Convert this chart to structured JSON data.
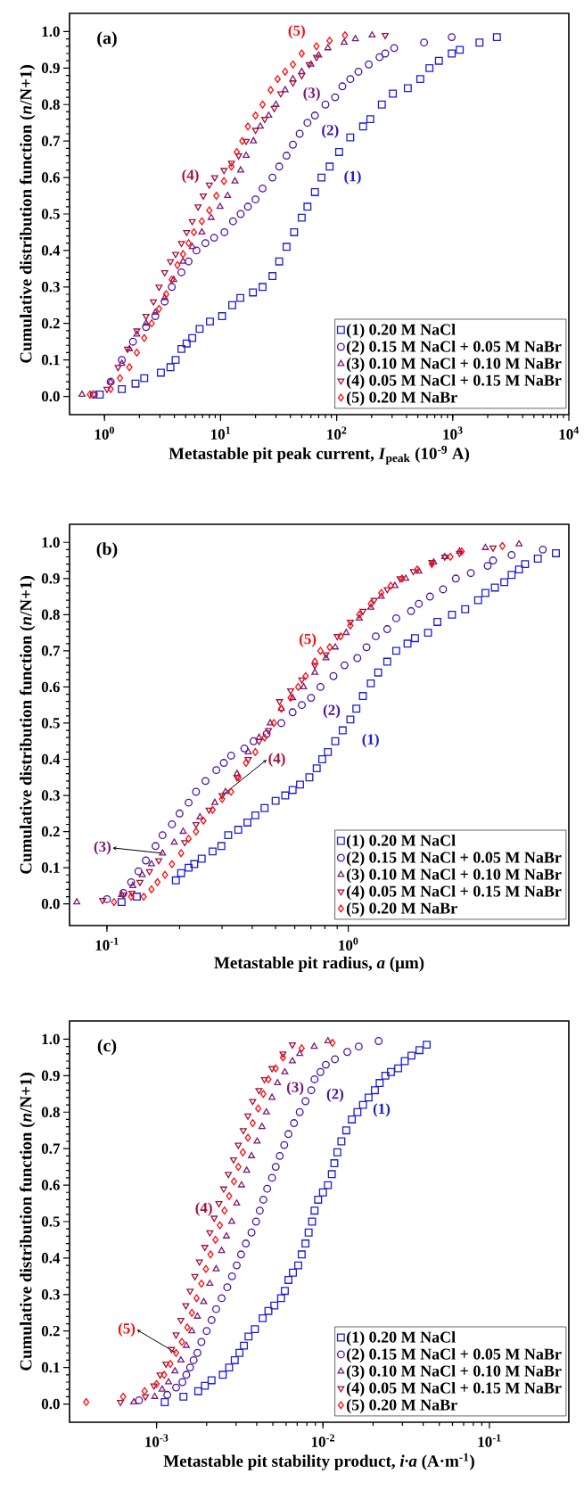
{
  "chart_data": [
    {
      "type": "scatter",
      "xlabel": "Metastable pit peak current, *I*$_{peak}$ (10$^{-9}$ A)",
      "ylabel": "Cumulative distribution function (*n*/N+1)",
      "log": "x",
      "legend": "bottom right",
      "xlim": [
        0.5,
        10000
      ],
      "ylim": [
        -0.05,
        1.05
      ],
      "xticks": [
        {
          "value": 1,
          "label": "10$^{0}$"
        },
        {
          "value": 10,
          "label": "10$^{1}$"
        },
        {
          "value": 100,
          "label": "10$^{2}$"
        },
        {
          "value": 1000,
          "label": "10$^{3}$"
        },
        {
          "value": 10000,
          "label": "10$^{4}$"
        }
      ],
      "yticks": [
        {
          "value": 0,
          "label": "0.0"
        },
        {
          "value": 0.1,
          "label": "0.1"
        },
        {
          "value": 0.2,
          "label": "0.2"
        },
        {
          "value": 0.3,
          "label": "0.3"
        },
        {
          "value": 0.4,
          "label": "0.4"
        },
        {
          "value": 0.5,
          "label": "0.5"
        },
        {
          "value": 0.6,
          "label": "0.6"
        },
        {
          "value": 0.7,
          "label": "0.7"
        },
        {
          "value": 0.8,
          "label": "0.8"
        },
        {
          "value": 0.9,
          "label": "0.9"
        },
        {
          "value": 1,
          "label": "1.0"
        }
      ],
      "annotations": [
        "(a)",
        "(1)",
        "(2)",
        "(3)",
        "(4)",
        "(5)"
      ],
      "series": [
        {
          "name": "(1) 0.20 M NaCl",
          "color": "#1c1cd8",
          "marker": "square",
          "x": [
            0.91,
            1.41,
            1.85,
            2.2,
            3.06,
            3.7,
            4.1,
            4.6,
            5.1,
            5.7,
            6.6,
            8.1,
            10.3,
            12.6,
            14.8,
            19,
            23,
            28,
            32,
            37,
            43,
            50,
            56,
            65,
            74,
            87,
            105,
            131,
            169,
            195,
            245,
            305,
            410,
            525,
            630,
            760,
            980,
            1150,
            1700,
            2400
          ],
          "values": [
            0.005,
            0.02,
            0.035,
            0.05,
            0.065,
            0.08,
            0.1,
            0.13,
            0.145,
            0.16,
            0.185,
            0.205,
            0.22,
            0.25,
            0.27,
            0.285,
            0.3,
            0.33,
            0.37,
            0.41,
            0.45,
            0.49,
            0.52,
            0.56,
            0.6,
            0.63,
            0.67,
            0.71,
            0.74,
            0.76,
            0.8,
            0.83,
            0.845,
            0.87,
            0.9,
            0.92,
            0.94,
            0.95,
            0.97,
            0.985
          ]
        },
        {
          "name": "(2) 0.15 M NaCl + 0.05 M NaBr",
          "color": "#4a12a0",
          "marker": "circle",
          "x": [
            0.81,
            1.13,
            1.41,
            1.76,
            2.28,
            2.74,
            3.3,
            3.8,
            4.6,
            5.3,
            6.2,
            7.4,
            8.8,
            10.8,
            12.8,
            14.9,
            17.2,
            20,
            23,
            28,
            32,
            37,
            42,
            48,
            56,
            65,
            80,
            97,
            112,
            131,
            154,
            189,
            234,
            262,
            313,
            566,
            980
          ],
          "values": [
            0.005,
            0.04,
            0.1,
            0.15,
            0.19,
            0.22,
            0.26,
            0.3,
            0.34,
            0.37,
            0.4,
            0.42,
            0.435,
            0.45,
            0.48,
            0.5,
            0.52,
            0.54,
            0.57,
            0.6,
            0.63,
            0.66,
            0.69,
            0.72,
            0.75,
            0.77,
            0.8,
            0.82,
            0.85,
            0.87,
            0.89,
            0.91,
            0.93,
            0.94,
            0.955,
            0.97,
            0.985
          ]
        },
        {
          "name": "(3) 0.10 M NaCl + 0.10 M NaBr",
          "color": "#7a1a78",
          "marker": "triangle",
          "x": [
            0.64,
            1.13,
            1.41,
            1.64,
            1.9,
            2.28,
            2.74,
            3.3,
            3.95,
            4.75,
            5.7,
            6.9,
            8.3,
            9.9,
            11.5,
            13.3,
            14.9,
            16.6,
            19.2,
            22,
            26,
            30,
            36,
            42,
            50,
            60,
            70,
            84,
            116,
            145,
            202
          ],
          "values": [
            0.005,
            0.04,
            0.09,
            0.13,
            0.17,
            0.2,
            0.23,
            0.27,
            0.32,
            0.37,
            0.41,
            0.45,
            0.49,
            0.52,
            0.55,
            0.59,
            0.62,
            0.66,
            0.7,
            0.74,
            0.77,
            0.8,
            0.84,
            0.87,
            0.89,
            0.91,
            0.935,
            0.955,
            0.97,
            0.98,
            0.99
          ]
        },
        {
          "name": "(4) 0.05 M NaCl + 0.15 M NaBr",
          "color": "#a3103c",
          "marker": "triangle-down",
          "x": [
            0.81,
            1.05,
            1.31,
            1.58,
            1.9,
            2.28,
            2.64,
            2.95,
            3.3,
            3.7,
            4.1,
            4.6,
            5.1,
            5.7,
            6.4,
            7.1,
            8.0,
            8.9,
            10.7,
            12.4,
            14.3,
            16.6,
            20,
            24,
            29,
            33,
            42,
            50,
            58,
            67,
            262
          ],
          "values": [
            0.005,
            0.02,
            0.08,
            0.13,
            0.18,
            0.22,
            0.26,
            0.3,
            0.34,
            0.37,
            0.39,
            0.42,
            0.45,
            0.48,
            0.52,
            0.55,
            0.58,
            0.6,
            0.62,
            0.64,
            0.66,
            0.7,
            0.73,
            0.76,
            0.79,
            0.83,
            0.86,
            0.88,
            0.91,
            0.93,
            0.99
          ]
        },
        {
          "name": "(5) 0.20 M NaBr",
          "color": "#ff0a0a",
          "marker": "diamond",
          "x": [
            0.75,
            1.13,
            1.36,
            1.64,
            1.9,
            2.2,
            2.55,
            2.95,
            3.4,
            3.8,
            4.25,
            4.75,
            5.3,
            5.9,
            6.9,
            8.0,
            9.2,
            10.7,
            12.4,
            13.8,
            15.4,
            17.2,
            20,
            23,
            27,
            31,
            36,
            42,
            50,
            67,
            87,
            118
          ],
          "values": [
            0.005,
            0.02,
            0.05,
            0.08,
            0.12,
            0.16,
            0.2,
            0.24,
            0.28,
            0.32,
            0.36,
            0.39,
            0.42,
            0.45,
            0.48,
            0.51,
            0.55,
            0.59,
            0.63,
            0.67,
            0.7,
            0.74,
            0.77,
            0.8,
            0.84,
            0.87,
            0.89,
            0.91,
            0.94,
            0.96,
            0.975,
            0.99
          ]
        }
      ]
    },
    {
      "type": "scatter",
      "xlabel": "Metastable pit radius, *a* (μm)",
      "ylabel": "Cumulative distribution function (*n*/N+1)",
      "log": "x",
      "legend": "bottom right",
      "xlim": [
        0.07,
        8.2
      ],
      "ylim": [
        -0.06,
        1.05
      ],
      "xticks": [
        {
          "value": 0.1,
          "label": "10$^{-1}$"
        },
        {
          "value": 1,
          "label": "10$^{0}$"
        }
      ],
      "yticks": [
        {
          "value": 0,
          "label": "0.0"
        },
        {
          "value": 0.1,
          "label": "0.1"
        },
        {
          "value": 0.2,
          "label": "0.2"
        },
        {
          "value": 0.3,
          "label": "0.3"
        },
        {
          "value": 0.4,
          "label": "0.4"
        },
        {
          "value": 0.5,
          "label": "0.5"
        },
        {
          "value": 0.6,
          "label": "0.6"
        },
        {
          "value": 0.7,
          "label": "0.7"
        },
        {
          "value": 0.8,
          "label": "0.8"
        },
        {
          "value": 0.9,
          "label": "0.9"
        },
        {
          "value": 1,
          "label": "1.0"
        }
      ],
      "annotations": [
        "(b)",
        "(1)",
        "(2)",
        {
          "text": "(3)",
          "x": 0.17,
          "y": 0.14
        },
        {
          "text": "(4)",
          "x": 0.3,
          "y": 0.3
        },
        "(5)"
      ],
      "series": [
        {
          "name": "(1) 0.20 M NaCl",
          "color": "#1c1cd8",
          "marker": "square",
          "x": [
            0.115,
            0.133,
            0.193,
            0.203,
            0.218,
            0.23,
            0.247,
            0.274,
            0.298,
            0.318,
            0.35,
            0.382,
            0.412,
            0.45,
            0.5,
            0.548,
            0.588,
            0.631,
            0.69,
            0.74,
            0.78,
            0.823,
            0.883,
            0.948,
            1.02,
            1.08,
            1.15,
            1.24,
            1.33,
            1.45,
            1.58,
            1.76,
            1.89,
            2.14,
            2.34,
            2.69,
            3.05,
            3.45,
            3.7,
            4.05,
            4.43,
            4.75,
            5.1,
            5.4,
            6.1,
            7.25
          ],
          "values": [
            0.005,
            0.02,
            0.065,
            0.085,
            0.1,
            0.11,
            0.125,
            0.145,
            0.16,
            0.19,
            0.205,
            0.225,
            0.245,
            0.265,
            0.285,
            0.3,
            0.315,
            0.33,
            0.35,
            0.375,
            0.4,
            0.42,
            0.45,
            0.48,
            0.51,
            0.54,
            0.575,
            0.61,
            0.64,
            0.67,
            0.7,
            0.72,
            0.735,
            0.75,
            0.78,
            0.8,
            0.815,
            0.84,
            0.86,
            0.875,
            0.89,
            0.91,
            0.925,
            0.94,
            0.955,
            0.97
          ]
        },
        {
          "name": "(2) 0.15 M NaCl + 0.05 M NaBr",
          "color": "#4a12a0",
          "marker": "circle",
          "x": [
            0.1,
            0.117,
            0.126,
            0.135,
            0.145,
            0.159,
            0.17,
            0.186,
            0.2,
            0.218,
            0.234,
            0.256,
            0.284,
            0.305,
            0.327,
            0.371,
            0.405,
            0.459,
            0.528,
            0.588,
            0.642,
            0.701,
            0.767,
            0.868,
            0.965,
            1.09,
            1.19,
            1.3,
            1.45,
            1.58,
            1.82,
            1.96,
            2.18,
            2.47,
            2.79,
            3.22,
            3.78,
            3.98,
            4.75,
            6.4
          ],
          "values": [
            0.013,
            0.03,
            0.06,
            0.09,
            0.12,
            0.16,
            0.19,
            0.22,
            0.25,
            0.28,
            0.31,
            0.34,
            0.37,
            0.39,
            0.41,
            0.43,
            0.45,
            0.47,
            0.5,
            0.53,
            0.55,
            0.57,
            0.6,
            0.63,
            0.66,
            0.68,
            0.71,
            0.74,
            0.76,
            0.79,
            0.81,
            0.83,
            0.85,
            0.87,
            0.9,
            0.915,
            0.935,
            0.95,
            0.965,
            0.98
          ]
        },
        {
          "name": "(3) 0.10 M NaCl + 0.10 M NaBr",
          "color": "#7a1a78",
          "marker": "triangle",
          "x": [
            0.075,
            0.115,
            0.128,
            0.14,
            0.153,
            0.17,
            0.19,
            0.207,
            0.243,
            0.28,
            0.31,
            0.346,
            0.385,
            0.427,
            0.475,
            0.528,
            0.588,
            0.653,
            0.727,
            0.808,
            0.883,
            0.98,
            1.11,
            1.24,
            1.37,
            1.56,
            1.73,
            1.96,
            2.26,
            2.51,
            2.89,
            3.7,
            5.1
          ],
          "values": [
            0.005,
            0.025,
            0.05,
            0.08,
            0.11,
            0.14,
            0.17,
            0.2,
            0.24,
            0.28,
            0.31,
            0.36,
            0.42,
            0.46,
            0.5,
            0.54,
            0.57,
            0.6,
            0.64,
            0.68,
            0.71,
            0.75,
            0.79,
            0.82,
            0.85,
            0.88,
            0.9,
            0.92,
            0.945,
            0.96,
            0.975,
            0.985,
            0.995
          ]
        },
        {
          "name": "(4) 0.05 M NaCl + 0.15 M NaBr",
          "color": "#a3103c",
          "marker": "triangle-down",
          "x": [
            0.096,
            0.117,
            0.127,
            0.137,
            0.15,
            0.164,
            0.21,
            0.234,
            0.265,
            0.3,
            0.346,
            0.385,
            0.427,
            0.467,
            0.519,
            0.577,
            0.642,
            0.727,
            0.808,
            0.9,
            1.02,
            1.15,
            1.28,
            1.45,
            1.64,
            1.86,
            2.22,
            2.51,
            2.89,
            3.98
          ],
          "values": [
            0.01,
            0.025,
            0.03,
            0.06,
            0.09,
            0.12,
            0.17,
            0.22,
            0.26,
            0.3,
            0.35,
            0.4,
            0.45,
            0.48,
            0.56,
            0.59,
            0.62,
            0.66,
            0.69,
            0.74,
            0.78,
            0.81,
            0.84,
            0.87,
            0.9,
            0.92,
            0.945,
            0.96,
            0.97,
            0.985
          ]
        },
        {
          "name": "(5) 0.20 M NaBr",
          "color": "#ff0a0a",
          "marker": "diamond",
          "x": [
            0.107,
            0.126,
            0.142,
            0.153,
            0.162,
            0.174,
            0.186,
            0.203,
            0.218,
            0.234,
            0.251,
            0.274,
            0.3,
            0.327,
            0.351,
            0.377,
            0.412,
            0.45,
            0.492,
            0.528,
            0.577,
            0.62,
            0.666,
            0.727,
            0.767,
            0.838,
            0.93,
            1.02,
            1.11,
            1.24,
            1.37,
            1.5,
            1.67,
            1.93,
            2.22,
            2.65,
            2.95,
            4.35
          ],
          "values": [
            0.005,
            0.02,
            0.02,
            0.04,
            0.06,
            0.08,
            0.11,
            0.14,
            0.18,
            0.2,
            0.23,
            0.26,
            0.29,
            0.31,
            0.35,
            0.39,
            0.42,
            0.46,
            0.5,
            0.54,
            0.57,
            0.6,
            0.63,
            0.67,
            0.7,
            0.71,
            0.74,
            0.77,
            0.8,
            0.83,
            0.86,
            0.88,
            0.9,
            0.925,
            0.94,
            0.96,
            0.975,
            0.99
          ]
        }
      ]
    },
    {
      "type": "scatter",
      "xlabel": "Metastable pit stability product, *i·a* (A·m$^{-1}$)",
      "ylabel": "Cumulative distribution function (*n*/N+1)",
      "log": "x",
      "legend": "bottom right",
      "xlim": [
        0.0003,
        0.3
      ],
      "ylim": [
        -0.05,
        1.05
      ],
      "xticks": [
        {
          "value": 0.001,
          "label": "10$^{-3}$"
        },
        {
          "value": 0.01,
          "label": "10$^{-2}$"
        },
        {
          "value": 0.1,
          "label": "10$^{-1}$"
        }
      ],
      "yticks": [
        {
          "value": 0,
          "label": "0.0"
        },
        {
          "value": 0.1,
          "label": "0.1"
        },
        {
          "value": 0.2,
          "label": "0.2"
        },
        {
          "value": 0.3,
          "label": "0.3"
        },
        {
          "value": 0.4,
          "label": "0.4"
        },
        {
          "value": 0.5,
          "label": "0.5"
        },
        {
          "value": 0.6,
          "label": "0.6"
        },
        {
          "value": 0.7,
          "label": "0.7"
        },
        {
          "value": 0.8,
          "label": "0.8"
        },
        {
          "value": 0.9,
          "label": "0.9"
        },
        {
          "value": 1,
          "label": "1.0"
        }
      ],
      "annotations": [
        "(c)",
        "(1)",
        "(2)",
        "(3)",
        "(4)",
        {
          "text": "(5)",
          "x": 0.00131,
          "y": 0.14
        }
      ],
      "series": [
        {
          "name": "(1) 0.20 M NaCl",
          "color": "#1c1cd8",
          "marker": "square",
          "x": [
            0.00112,
            0.00145,
            0.00178,
            0.00195,
            0.00214,
            0.0025,
            0.00273,
            0.00295,
            0.00315,
            0.00335,
            0.00357,
            0.0039,
            0.00434,
            0.0047,
            0.0051,
            0.0056,
            0.0059,
            0.0062,
            0.0066,
            0.0071,
            0.00745,
            0.00785,
            0.0082,
            0.0086,
            0.0089,
            0.00935,
            0.01,
            0.0107,
            0.0113,
            0.0117,
            0.0122,
            0.0129,
            0.0138,
            0.0149,
            0.0161,
            0.0174,
            0.0188,
            0.0205,
            0.0219,
            0.0237,
            0.0256,
            0.0283,
            0.031,
            0.034,
            0.038,
            0.042
          ],
          "values": [
            0.005,
            0.02,
            0.035,
            0.05,
            0.065,
            0.08,
            0.1,
            0.12,
            0.14,
            0.16,
            0.185,
            0.205,
            0.235,
            0.255,
            0.27,
            0.29,
            0.31,
            0.34,
            0.36,
            0.38,
            0.41,
            0.44,
            0.47,
            0.5,
            0.53,
            0.56,
            0.58,
            0.6,
            0.63,
            0.66,
            0.69,
            0.72,
            0.75,
            0.78,
            0.8,
            0.82,
            0.84,
            0.86,
            0.88,
            0.9,
            0.91,
            0.92,
            0.94,
            0.955,
            0.97,
            0.985
          ]
        },
        {
          "name": "(2) 0.15 M NaCl + 0.05 M NaBr",
          "color": "#4a12a0",
          "marker": "circle",
          "x": [
            0.000785,
            0.00116,
            0.00131,
            0.00143,
            0.00151,
            0.00159,
            0.00167,
            0.00176,
            0.00186,
            0.002,
            0.00214,
            0.00228,
            0.00246,
            0.00266,
            0.00284,
            0.00303,
            0.00322,
            0.00344,
            0.00372,
            0.00396,
            0.00417,
            0.00438,
            0.00462,
            0.00494,
            0.0052,
            0.0055,
            0.00585,
            0.0062,
            0.0067,
            0.00725,
            0.00785,
            0.0085,
            0.0089,
            0.00965,
            0.0104,
            0.0118,
            0.014,
            0.0164,
            0.0216
          ],
          "values": [
            0.01,
            0.025,
            0.045,
            0.06,
            0.08,
            0.1,
            0.12,
            0.14,
            0.17,
            0.2,
            0.23,
            0.26,
            0.29,
            0.32,
            0.35,
            0.38,
            0.41,
            0.44,
            0.47,
            0.5,
            0.53,
            0.56,
            0.59,
            0.62,
            0.65,
            0.68,
            0.71,
            0.74,
            0.77,
            0.8,
            0.83,
            0.86,
            0.89,
            0.91,
            0.93,
            0.945,
            0.965,
            0.98,
            0.995
          ]
        },
        {
          "name": "(3) 0.10 M NaCl + 0.10 M NaBr",
          "color": "#7a1a78",
          "marker": "triangle",
          "x": [
            0.00073,
            0.000975,
            0.00108,
            0.00118,
            0.00129,
            0.0014,
            0.00151,
            0.00163,
            0.00176,
            0.00192,
            0.00209,
            0.00228,
            0.00246,
            0.00263,
            0.00283,
            0.00303,
            0.00324,
            0.00348,
            0.00372,
            0.00402,
            0.0043,
            0.00457,
            0.00494,
            0.00533,
            0.0059,
            0.00655,
            0.00725,
            0.00885,
            0.0107
          ],
          "values": [
            0.005,
            0.02,
            0.04,
            0.06,
            0.09,
            0.12,
            0.16,
            0.2,
            0.24,
            0.28,
            0.33,
            0.37,
            0.42,
            0.46,
            0.5,
            0.55,
            0.6,
            0.64,
            0.68,
            0.72,
            0.76,
            0.8,
            0.84,
            0.88,
            0.91,
            0.94,
            0.96,
            0.98,
            0.995
          ]
        },
        {
          "name": "(4) 0.05 M NaCl + 0.15 M NaBr",
          "color": "#a3103c",
          "marker": "triangle-down",
          "x": [
            0.000607,
            0.000857,
            0.000965,
            0.00105,
            0.00114,
            0.00123,
            0.00131,
            0.0014,
            0.0015,
            0.00159,
            0.0017,
            0.00181,
            0.00195,
            0.00209,
            0.00222,
            0.00237,
            0.00253,
            0.0027,
            0.0029,
            0.0031,
            0.00332,
            0.00354,
            0.00378,
            0.00412,
            0.00445,
            0.00494,
            0.00575,
            0.00655
          ],
          "values": [
            0.005,
            0.02,
            0.05,
            0.08,
            0.11,
            0.15,
            0.19,
            0.23,
            0.27,
            0.31,
            0.35,
            0.39,
            0.43,
            0.47,
            0.51,
            0.55,
            0.59,
            0.63,
            0.67,
            0.71,
            0.75,
            0.79,
            0.83,
            0.86,
            0.89,
            0.92,
            0.96,
            0.985
          ]
        },
        {
          "name": "(5) 0.20 M NaBr",
          "color": "#ff0a0a",
          "marker": "diamond",
          "x": [
            0.000378,
            0.00063,
            0.000848,
            0.001,
            0.00111,
            0.00121,
            0.00131,
            0.00142,
            0.00153,
            0.00163,
            0.00174,
            0.00186,
            0.00198,
            0.00211,
            0.00226,
            0.0024,
            0.00256,
            0.00273,
            0.00292,
            0.0031,
            0.0033,
            0.00354,
            0.00378,
            0.00408,
            0.00438,
            0.0047,
            0.0052,
            0.00575,
            0.00745,
            0.0114
          ],
          "values": [
            0.005,
            0.02,
            0.035,
            0.055,
            0.08,
            0.11,
            0.14,
            0.17,
            0.21,
            0.25,
            0.29,
            0.33,
            0.37,
            0.41,
            0.45,
            0.49,
            0.53,
            0.57,
            0.61,
            0.65,
            0.69,
            0.73,
            0.77,
            0.81,
            0.85,
            0.89,
            0.92,
            0.95,
            0.975,
            0.99
          ]
        }
      ]
    }
  ]
}
